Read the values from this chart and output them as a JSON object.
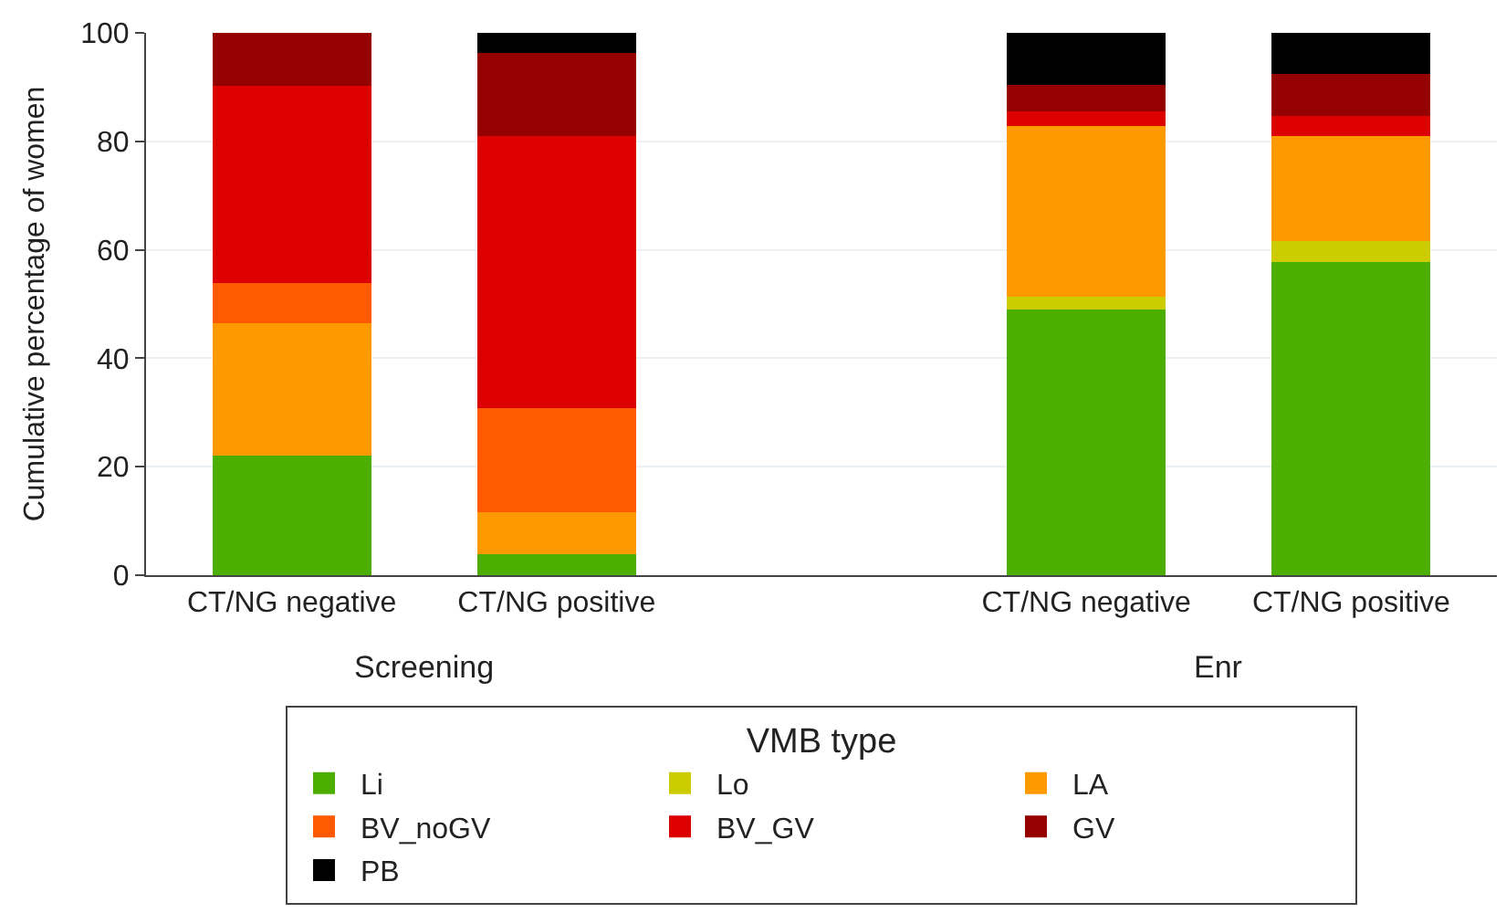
{
  "chart_data": {
    "type": "bar",
    "stacked": true,
    "ylabel": "Cumulative percentage of women",
    "legend_title": "VMB type",
    "categories": [
      "CT/NG negative",
      "CT/NG positive",
      null,
      "CT/NG negative",
      "CT/NG positive"
    ],
    "series": [
      {
        "name": "Li",
        "color": "#4caf00",
        "values": [
          22.1,
          3.9,
          null,
          49.0,
          57.8
        ]
      },
      {
        "name": "Lo",
        "color": "#cccc00",
        "values": [
          0,
          0,
          null,
          2.4,
          3.8
        ]
      },
      {
        "name": "LA",
        "color": "#ff9900",
        "values": [
          24.3,
          7.8,
          null,
          31.5,
          19.3
        ]
      },
      {
        "name": "BV_noGV",
        "color": "#ff5a00",
        "values": [
          7.4,
          19.1,
          null,
          0,
          0
        ]
      },
      {
        "name": "BV_GV",
        "color": "#dd0000",
        "values": [
          36.5,
          50.1,
          null,
          2.6,
          3.7
        ]
      },
      {
        "name": "GV",
        "color": "#950000",
        "values": [
          9.7,
          15.4,
          null,
          4.9,
          7.9
        ]
      },
      {
        "name": "PB",
        "color": "#000000",
        "values": [
          0,
          3.7,
          null,
          9.6,
          7.5
        ]
      }
    ],
    "annotations": [
      "Screening",
      "Enr"
    ],
    "ylim": [
      0,
      100
    ],
    "yticks": [
      0,
      20,
      40,
      60,
      80,
      100
    ],
    "grid": "y",
    "legend": "bottom"
  }
}
